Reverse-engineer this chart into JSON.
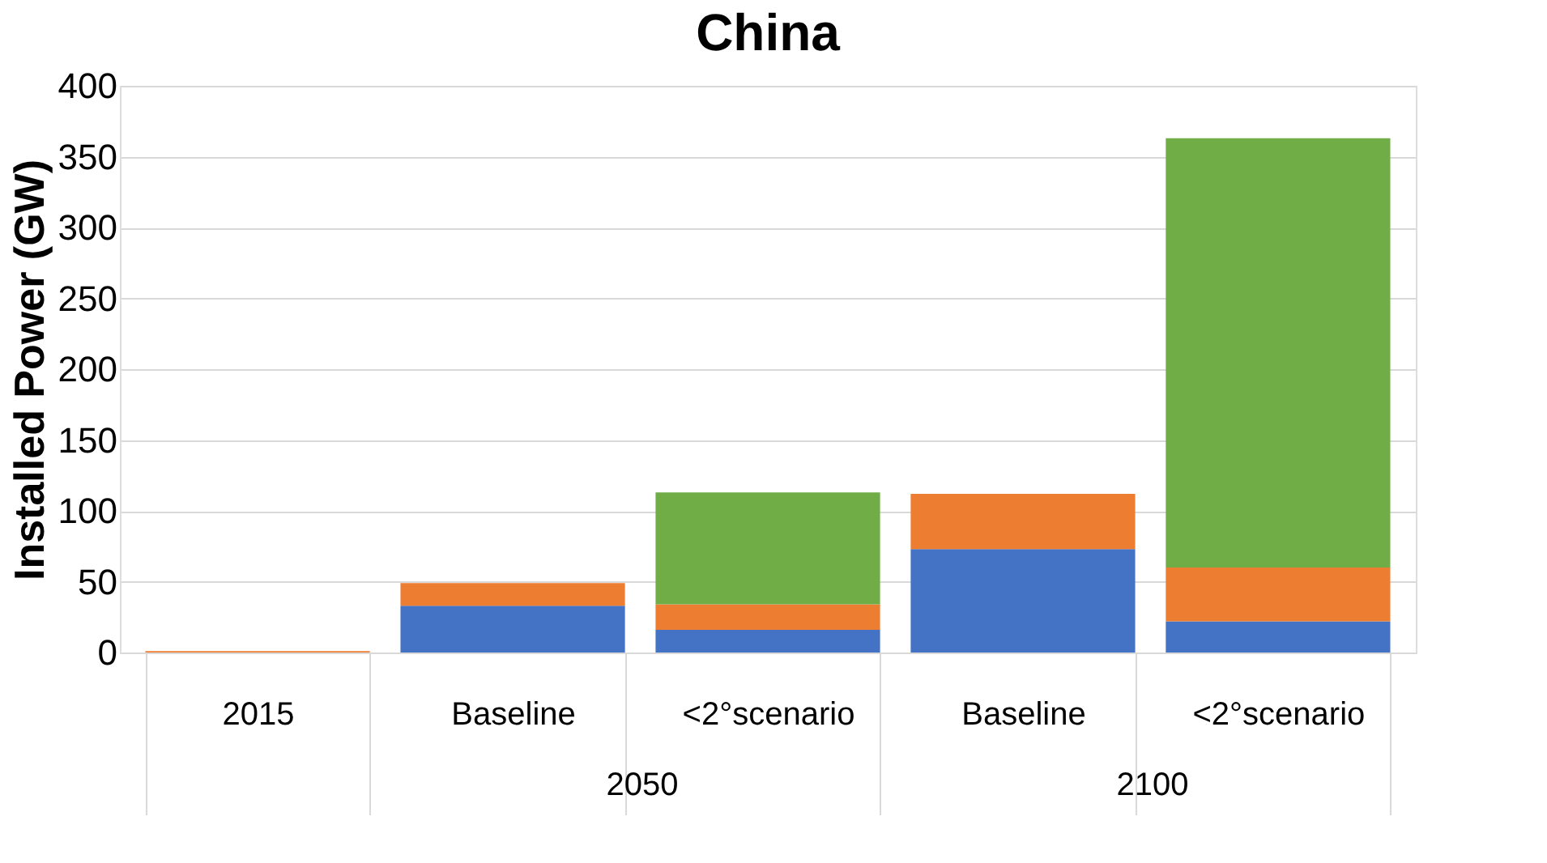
{
  "chart_data": {
    "type": "bar",
    "title": "China",
    "ylabel": "Installed Power (GW)",
    "categories": [
      "2015",
      "Baseline",
      "<2°scenario",
      "Baseline",
      "<2°scenario"
    ],
    "stacked": true,
    "series": [
      {
        "color": "#4472c4",
        "values": [
          0,
          33,
          16,
          73,
          22
        ]
      },
      {
        "color": "#ed7d31",
        "values": [
          1,
          16,
          18,
          39,
          38
        ]
      },
      {
        "color": "#70ad47",
        "values": [
          0,
          0,
          79,
          0,
          303
        ]
      }
    ],
    "annotations": [
      "2050",
      "2100"
    ],
    "ylim": [
      0,
      400
    ],
    "yticks": [
      0,
      50,
      100,
      150,
      200,
      250,
      300,
      350,
      400
    ],
    "grid": "y"
  }
}
